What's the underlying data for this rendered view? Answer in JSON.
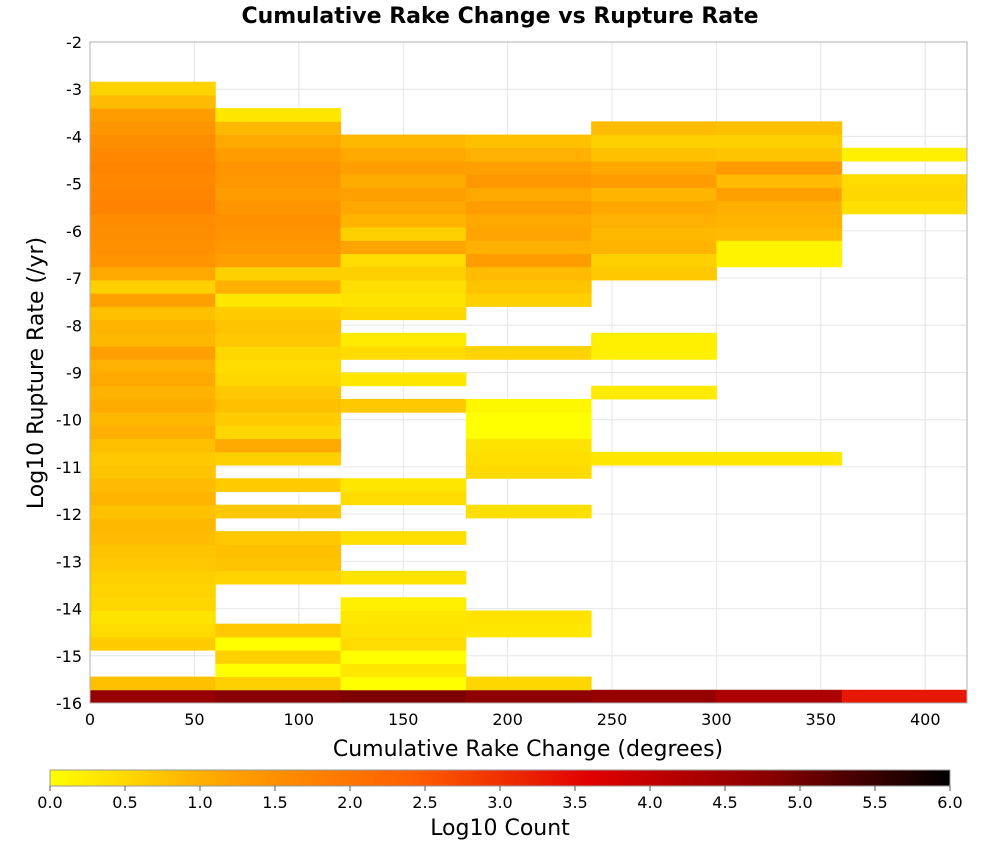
{
  "chart_data": {
    "type": "heatmap",
    "title": "Cumulative Rake Change vs Rupture Rate",
    "xlabel": "Cumulative Rake Change (degrees)",
    "ylabel": "Log10 Rupture Rate (/yr)",
    "xlim": [
      0,
      420
    ],
    "ylim": [
      -16,
      -2
    ],
    "xticks": [
      0,
      50,
      100,
      150,
      200,
      250,
      300,
      350,
      400
    ],
    "yticks": [
      -16,
      -15,
      -14,
      -13,
      -12,
      -11,
      -10,
      -9,
      -8,
      -7,
      -6,
      -5,
      -4,
      -3,
      -2
    ],
    "grid": true,
    "x_bin_edges": [
      0,
      60,
      120,
      180,
      240,
      300,
      360,
      420
    ],
    "y_bin_size": 0.28,
    "colorbar": {
      "label": "Log10 Count",
      "range": [
        0,
        6
      ],
      "ticks": [
        0.0,
        0.5,
        1.0,
        1.5,
        2.0,
        2.5,
        3.0,
        3.5,
        4.0,
        4.5,
        5.0,
        5.5,
        6.0
      ],
      "colors": [
        "#ffff00",
        "#ffa000",
        "#ff6000",
        "#e00000",
        "#880000",
        "#000000"
      ]
    },
    "columns": [
      {
        "x0": 0,
        "x1": 60,
        "cells": [
          [
            -16.0,
            4.6
          ],
          [
            -15.72,
            0.8
          ],
          [
            -14.88,
            0.65
          ],
          [
            -14.6,
            0.45
          ],
          [
            -14.32,
            0.35
          ],
          [
            -14.04,
            0.5
          ],
          [
            -13.76,
            0.55
          ],
          [
            -13.48,
            0.6
          ],
          [
            -13.2,
            0.7
          ],
          [
            -12.92,
            0.75
          ],
          [
            -12.64,
            0.85
          ],
          [
            -12.36,
            0.9
          ],
          [
            -12.08,
            0.8
          ],
          [
            -11.8,
            0.95
          ],
          [
            -11.52,
            0.85
          ],
          [
            -11.24,
            0.75
          ],
          [
            -10.96,
            0.7
          ],
          [
            -10.68,
            0.8
          ],
          [
            -10.4,
            1.0
          ],
          [
            -10.12,
            0.9
          ],
          [
            -9.84,
            1.05
          ],
          [
            -9.56,
            0.95
          ],
          [
            -9.28,
            1.1
          ],
          [
            -9.0,
            1.0
          ],
          [
            -8.72,
            1.2
          ],
          [
            -8.44,
            0.9
          ],
          [
            -8.16,
            0.95
          ],
          [
            -7.88,
            0.8
          ],
          [
            -7.6,
            1.2
          ],
          [
            -7.32,
            0.6
          ],
          [
            -7.04,
            1.1
          ],
          [
            -6.76,
            1.45
          ],
          [
            -6.48,
            1.5
          ],
          [
            -6.2,
            1.55
          ],
          [
            -5.92,
            1.6
          ],
          [
            -5.64,
            1.75
          ],
          [
            -5.36,
            1.7
          ],
          [
            -5.08,
            1.65
          ],
          [
            -4.8,
            1.7
          ],
          [
            -4.52,
            1.65
          ],
          [
            -4.24,
            1.55
          ],
          [
            -3.96,
            1.4
          ],
          [
            -3.68,
            1.25
          ],
          [
            -3.4,
            0.85
          ],
          [
            -3.12,
            0.55
          ]
        ]
      },
      {
        "x0": 60,
        "x1": 120,
        "cells": [
          [
            -16.0,
            4.8
          ],
          [
            -15.72,
            0.6
          ],
          [
            -15.44,
            0.0
          ],
          [
            -15.16,
            0.6
          ],
          [
            -14.88,
            0.0
          ],
          [
            -14.6,
            0.7
          ],
          [
            -13.48,
            0.55
          ],
          [
            -13.2,
            0.75
          ],
          [
            -12.92,
            0.8
          ],
          [
            -12.64,
            0.7
          ],
          [
            -12.08,
            0.7
          ],
          [
            -11.52,
            0.65
          ],
          [
            -10.96,
            0.6
          ],
          [
            -10.68,
            1.1
          ],
          [
            -10.4,
            0.5
          ],
          [
            -10.12,
            0.65
          ],
          [
            -9.84,
            0.8
          ],
          [
            -9.56,
            0.7
          ],
          [
            -9.28,
            0.5
          ],
          [
            -9.0,
            0.45
          ],
          [
            -8.72,
            0.5
          ],
          [
            -8.44,
            0.7
          ],
          [
            -8.16,
            0.75
          ],
          [
            -7.88,
            0.65
          ],
          [
            -7.6,
            0.3
          ],
          [
            -7.32,
            1.0
          ],
          [
            -7.04,
            0.6
          ],
          [
            -6.76,
            1.2
          ],
          [
            -6.48,
            1.35
          ],
          [
            -6.2,
            1.45
          ],
          [
            -5.92,
            1.5
          ],
          [
            -5.64,
            1.4
          ],
          [
            -5.36,
            1.25
          ],
          [
            -5.08,
            1.35
          ],
          [
            -4.8,
            1.4
          ],
          [
            -4.52,
            1.25
          ],
          [
            -4.24,
            1.1
          ],
          [
            -3.96,
            0.9
          ],
          [
            -3.68,
            0.3
          ]
        ]
      },
      {
        "x0": 120,
        "x1": 180,
        "cells": [
          [
            -16.0,
            4.9
          ],
          [
            -15.72,
            0.0
          ],
          [
            -15.44,
            0.3
          ],
          [
            -15.16,
            0.0
          ],
          [
            -14.88,
            0.45
          ],
          [
            -14.6,
            0.35
          ],
          [
            -14.32,
            0.3
          ],
          [
            -14.04,
            0.2
          ],
          [
            -13.48,
            0.35
          ],
          [
            -12.64,
            0.4
          ],
          [
            -11.8,
            0.45
          ],
          [
            -11.52,
            0.3
          ],
          [
            -9.84,
            0.7
          ],
          [
            -9.28,
            0.3
          ],
          [
            -8.72,
            0.45
          ],
          [
            -8.44,
            0.25
          ],
          [
            -7.88,
            0.5
          ],
          [
            -7.6,
            0.35
          ],
          [
            -7.32,
            0.4
          ],
          [
            -7.04,
            0.6
          ],
          [
            -6.76,
            0.45
          ],
          [
            -6.48,
            1.15
          ],
          [
            -6.2,
            0.6
          ],
          [
            -5.92,
            0.95
          ],
          [
            -5.64,
            1.1
          ],
          [
            -5.36,
            1.2
          ],
          [
            -5.08,
            1.05
          ],
          [
            -4.8,
            1.2
          ],
          [
            -4.52,
            1.1
          ],
          [
            -4.24,
            0.9
          ]
        ]
      },
      {
        "x0": 180,
        "x1": 240,
        "cells": [
          [
            -16.0,
            4.7
          ],
          [
            -15.72,
            0.5
          ],
          [
            -14.6,
            0.3
          ],
          [
            -14.32,
            0.35
          ],
          [
            -12.08,
            0.4
          ],
          [
            -11.24,
            0.45
          ],
          [
            -10.96,
            0.4
          ],
          [
            -10.68,
            0.35
          ],
          [
            -10.4,
            0.0
          ],
          [
            -10.12,
            0.0
          ],
          [
            -9.84,
            0.1
          ],
          [
            -8.72,
            0.55
          ],
          [
            -7.6,
            0.6
          ],
          [
            -7.32,
            0.75
          ],
          [
            -7.04,
            0.85
          ],
          [
            -6.76,
            1.25
          ],
          [
            -6.48,
            1.0
          ],
          [
            -6.2,
            1.15
          ],
          [
            -5.92,
            1.1
          ],
          [
            -5.64,
            1.25
          ],
          [
            -5.36,
            1.1
          ],
          [
            -5.08,
            1.35
          ],
          [
            -4.8,
            1.2
          ],
          [
            -4.52,
            1.0
          ],
          [
            -4.24,
            0.8
          ]
        ]
      },
      {
        "x0": 240,
        "x1": 300,
        "cells": [
          [
            -16.0,
            4.6
          ],
          [
            -10.96,
            0.3
          ],
          [
            -9.56,
            0.25
          ],
          [
            -8.72,
            0.2
          ],
          [
            -8.44,
            0.2
          ],
          [
            -7.04,
            0.7
          ],
          [
            -6.76,
            0.6
          ],
          [
            -6.48,
            0.95
          ],
          [
            -6.2,
            0.9
          ],
          [
            -5.92,
            1.0
          ],
          [
            -5.64,
            1.1
          ],
          [
            -5.36,
            0.95
          ],
          [
            -5.08,
            1.25
          ],
          [
            -4.8,
            1.1
          ],
          [
            -4.52,
            0.8
          ],
          [
            -4.24,
            0.6
          ],
          [
            -3.96,
            0.85
          ]
        ]
      },
      {
        "x0": 300,
        "x1": 360,
        "cells": [
          [
            -16.0,
            4.3
          ],
          [
            -10.96,
            0.3
          ],
          [
            -6.76,
            0.15
          ],
          [
            -6.48,
            0.15
          ],
          [
            -6.2,
            0.85
          ],
          [
            -5.92,
            0.95
          ],
          [
            -5.64,
            1.0
          ],
          [
            -5.36,
            1.2
          ],
          [
            -5.08,
            0.85
          ],
          [
            -4.8,
            1.3
          ],
          [
            -4.52,
            0.75
          ],
          [
            -4.24,
            0.6
          ],
          [
            -3.96,
            0.8
          ]
        ]
      },
      {
        "x0": 360,
        "x1": 420,
        "cells": [
          [
            -16.0,
            3.3
          ],
          [
            -5.64,
            0.4
          ],
          [
            -5.36,
            0.5
          ],
          [
            -5.08,
            0.45
          ],
          [
            -4.52,
            0.2
          ]
        ]
      }
    ]
  }
}
